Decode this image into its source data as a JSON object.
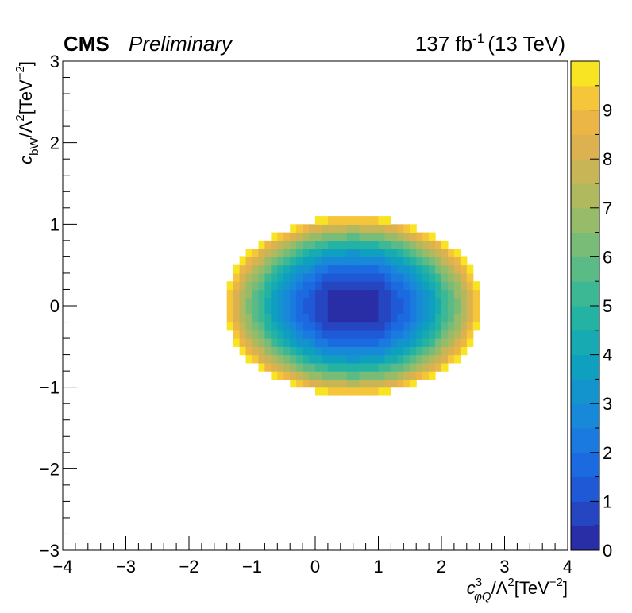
{
  "header": {
    "experiment": "CMS",
    "status": "Preliminary",
    "lumi": "137 fb",
    "lumi_exponent": "-1",
    "energy": "(13 TeV)"
  },
  "axes": {
    "x_label": {
      "symbol": "c",
      "sup": "3",
      "sub": "φQ",
      "rest": "/Λ",
      "rest_sup": "2",
      "unit": "[TeV",
      "unit_sup": "−2",
      "unit_close": "]"
    },
    "y_label": {
      "symbol": "c",
      "sub": "bW",
      "rest": "/Λ",
      "rest_sup": "2",
      "unit": "[TeV",
      "unit_sup": "−2",
      "unit_close": "]"
    }
  },
  "chart_data": {
    "type": "heatmap",
    "title": "",
    "xlim": [
      -4,
      4
    ],
    "ylim": [
      -3,
      3
    ],
    "x_ticks": [
      -4,
      -3,
      -2,
      -1,
      0,
      1,
      2,
      3,
      4
    ],
    "x_tick_labels": [
      "−4",
      "−3",
      "−2",
      "−1",
      "0",
      "1",
      "2",
      "3",
      "4"
    ],
    "y_ticks": [
      -3,
      -2,
      -1,
      0,
      1,
      2,
      3
    ],
    "y_tick_labels": [
      "−3",
      "−2",
      "−1",
      "0",
      "1",
      "2",
      "3"
    ],
    "z_range": [
      0,
      10
    ],
    "z_ticks": [
      0,
      1,
      2,
      3,
      4,
      5,
      6,
      7,
      8,
      9
    ],
    "z_tick_labels": [
      "0",
      "1",
      "2",
      "3",
      "4",
      "5",
      "6",
      "7",
      "8",
      "9"
    ],
    "z_levels": 20,
    "bins": {
      "nx": 80,
      "ny": 60
    },
    "function": {
      "form": "quadratic_ellipse",
      "center": [
        0.6,
        0.0
      ],
      "z_at_edge": 10,
      "semi_axis_x": 2.05,
      "semi_axis_y": 1.1
    },
    "min_point": [
      0.6,
      0.0
    ],
    "min_value": 0,
    "colormap": [
      "#2a2ea6",
      "#2545c1",
      "#1f59d6",
      "#1b6ae0",
      "#1a7ae0",
      "#1888d8",
      "#1494cd",
      "#0fa0c0",
      "#17aab2",
      "#24b3a3",
      "#3db895",
      "#5bbb86",
      "#79bc78",
      "#96bc6a",
      "#b1b95f",
      "#c8b556",
      "#dcb250",
      "#ecb646",
      "#f6c63a",
      "#f9e424"
    ]
  }
}
